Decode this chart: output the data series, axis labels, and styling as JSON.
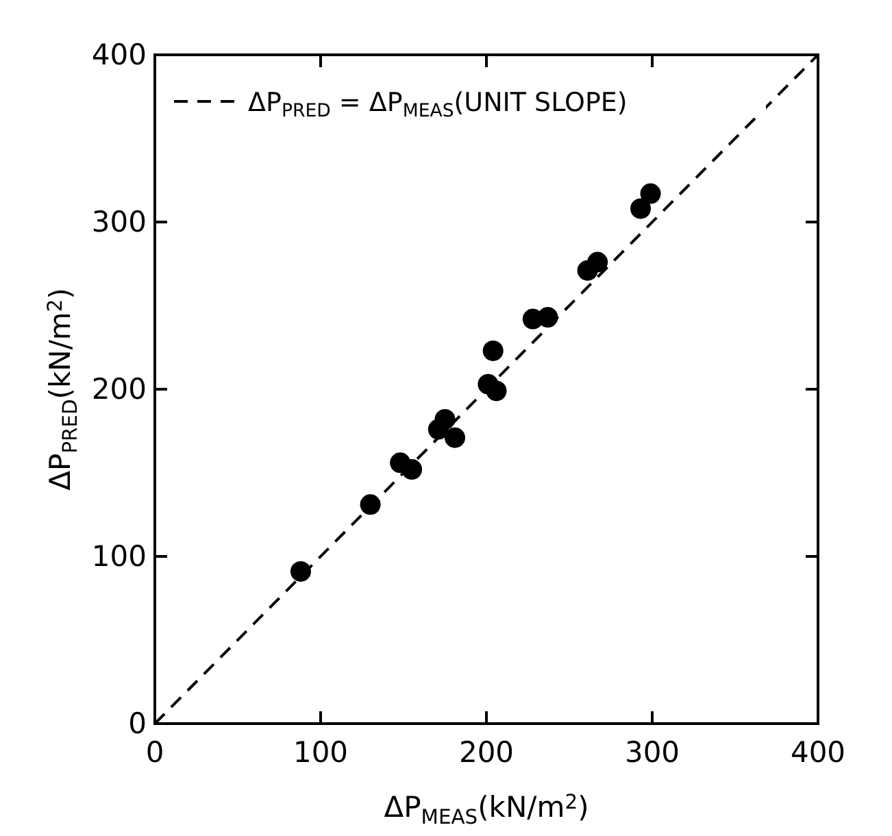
{
  "chart_data": {
    "type": "scatter",
    "xlabel": "ΔP$_{MEAS}$(kN/m$^{2}$)",
    "ylabel": "ΔP$_{PRED}$(kN/m$^{2}$)",
    "xlim": [
      0,
      400
    ],
    "ylim": [
      0,
      400
    ],
    "xticks": [
      0,
      100,
      200,
      300,
      400
    ],
    "yticks": [
      0,
      100,
      200,
      300,
      400
    ],
    "grid": false,
    "legend": "top left",
    "marker": "circle",
    "series": [
      {
        "color": "#000000",
        "x": [
          88,
          130,
          148,
          155,
          171,
          175,
          181,
          201,
          206,
          204,
          228,
          237,
          261,
          267,
          293,
          299
        ],
        "values": [
          91,
          131,
          156,
          152,
          176,
          182,
          171,
          203,
          199,
          223,
          242,
          243,
          271,
          276,
          308,
          317
        ]
      },
      {
        "type": "line",
        "name": "ΔP$_{PRED}$ = ΔP$_{MEAS}$(UNIT SLOPE)",
        "color": "#000000",
        "line_style": "dashed",
        "marker": "none",
        "x": [
          0,
          400
        ],
        "values": [
          0,
          400
        ]
      }
    ]
  }
}
